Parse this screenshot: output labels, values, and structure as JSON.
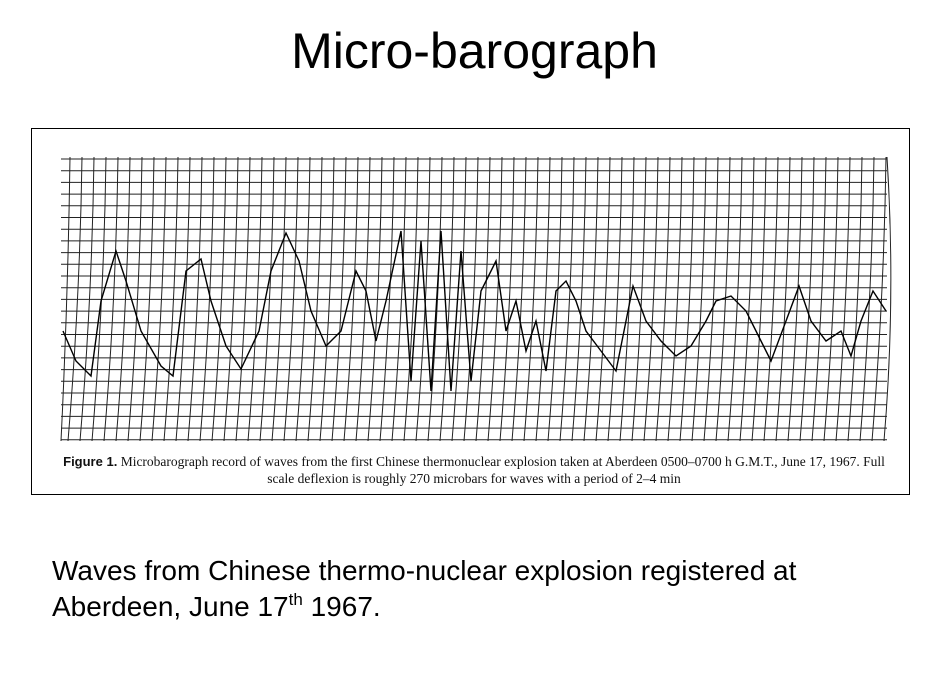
{
  "title": "Micro-barograph",
  "figure": {
    "caption_label": "Figure 1.",
    "caption_text": "Microbarograph record of waves from the first Chinese thermonuclear explosion taken at Aberdeen 0500–0700 h G.M.T., June 17, 1967. Full scale deflexion is roughly 270 microbars for waves with a period of 2–4 min"
  },
  "body": {
    "text_before": "Waves from Chinese thermo-nuclear explosion registered at Aberdeen, June 17",
    "superscript": "th",
    "text_after": " 1967."
  }
}
